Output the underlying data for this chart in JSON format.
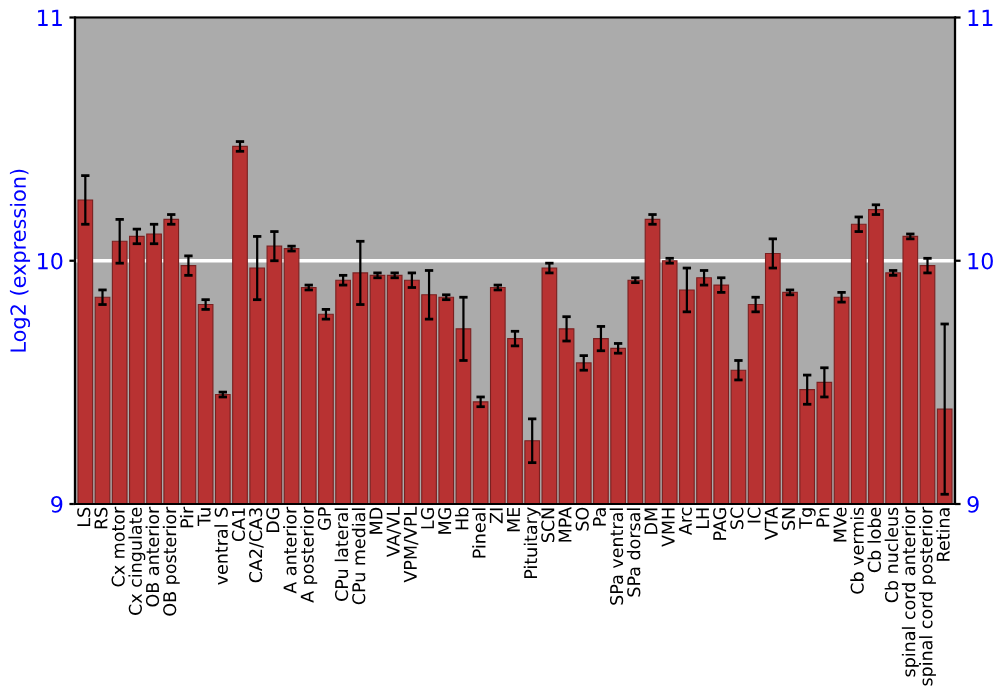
{
  "chart_data": {
    "type": "bar",
    "ylabel": "Log2 (expression)",
    "categories": [
      "LS",
      "RS",
      "Cx motor",
      "Cx cingulate",
      "OB anterior",
      "OB posterior",
      "Pir",
      "Tu",
      "ventral S",
      "CA1",
      "CA2/CA3",
      "DG",
      "A anterior",
      "A posterior",
      "GP",
      "CPu lateral",
      "CPu medial",
      "MD",
      "VA/VL",
      "VPM/VPL",
      "LG",
      "MG",
      "Hb",
      "Pineal",
      "ZI",
      "ME",
      "Pituitary",
      "SCN",
      "MPA",
      "SO",
      "Pa",
      "SPa ventral",
      "SPa dorsal",
      "DM",
      "VMH",
      "Arc",
      "LH",
      "PAG",
      "SC",
      "IC",
      "VTA",
      "SN",
      "Tg",
      "Pn",
      "MVe",
      "Cb vermis",
      "Cb lobe",
      "Cb nucleus",
      "spinal cord anterior",
      "spinal cord posterior",
      "Retina"
    ],
    "values": [
      10.25,
      9.85,
      10.08,
      10.1,
      10.11,
      10.17,
      9.98,
      9.82,
      9.45,
      10.47,
      9.97,
      10.06,
      10.05,
      9.89,
      9.78,
      9.92,
      9.95,
      9.94,
      9.94,
      9.92,
      9.86,
      9.85,
      9.72,
      9.42,
      9.89,
      9.68,
      9.26,
      9.97,
      9.72,
      9.58,
      9.68,
      9.64,
      9.92,
      10.17,
      10.0,
      9.88,
      9.93,
      9.9,
      9.55,
      9.82,
      10.03,
      9.87,
      9.47,
      9.5,
      9.85,
      10.15,
      10.21,
      9.95,
      10.1,
      9.98,
      9.39
    ],
    "errors": [
      0.1,
      0.03,
      0.09,
      0.03,
      0.04,
      0.02,
      0.04,
      0.02,
      0.01,
      0.02,
      0.13,
      0.06,
      0.01,
      0.01,
      0.02,
      0.02,
      0.13,
      0.01,
      0.01,
      0.03,
      0.1,
      0.01,
      0.13,
      0.02,
      0.01,
      0.03,
      0.09,
      0.02,
      0.05,
      0.03,
      0.05,
      0.02,
      0.01,
      0.02,
      0.01,
      0.09,
      0.03,
      0.03,
      0.04,
      0.03,
      0.06,
      0.01,
      0.06,
      0.06,
      0.02,
      0.03,
      0.02,
      0.01,
      0.01,
      0.03,
      0.35
    ],
    "color": "#b83232",
    "ylim": [
      9,
      11
    ],
    "yticks": [
      9,
      10,
      11
    ],
    "y2lim": [
      9,
      11
    ],
    "y2ticks": [
      9,
      10,
      11
    ],
    "ref_lines": [
      {
        "axis": "y",
        "value": 10,
        "color": "#ffffff"
      }
    ]
  }
}
